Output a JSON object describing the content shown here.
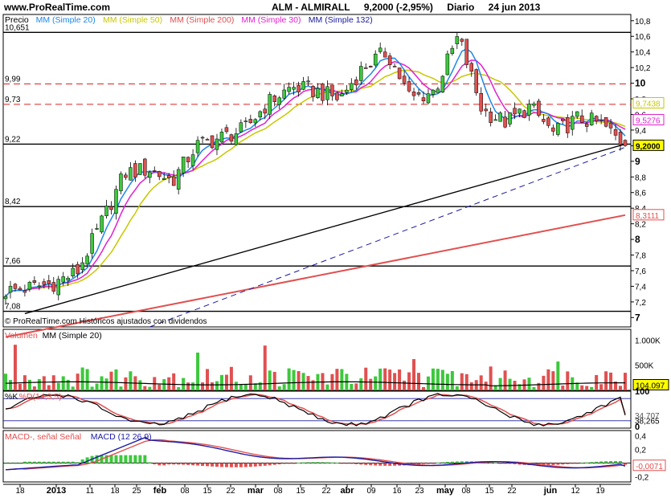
{
  "header": {
    "site": "www.ProRealTime.com",
    "ticker": "ALM - ALMIRALL",
    "quote": "9,2000 (-2,95%)",
    "period": "Diario",
    "date": "24 jun 2013"
  },
  "price_panel": {
    "legend": [
      {
        "text": "Precio",
        "color": "#000000"
      },
      {
        "text": "MM (Simple 20)",
        "color": "#1e88e5"
      },
      {
        "text": "MM (Simple 50)",
        "color": "#c8c800"
      },
      {
        "text": "MM (Simple 200)",
        "color": "#e05050"
      },
      {
        "text": "MM (Simple 30)",
        "color": "#e020d0"
      },
      {
        "text": "MM (Simple 132)",
        "color": "#1a1aa0"
      }
    ],
    "level_labels": [
      "10,651",
      "9,99",
      "9,73",
      "9,22",
      "8,42",
      "7,66",
      "7,08"
    ],
    "copyright": "© ProRealTime.com  Históricos ajustados con dividendos",
    "axis_ticks": [
      "10,8",
      "10,6",
      "10,4",
      "10,2",
      "10",
      "9,8",
      "9,6",
      "9,4",
      "9,2",
      "9",
      "8,8",
      "8,6",
      "8,4",
      "8,2",
      "8",
      "7,8",
      "7,6",
      "7,4",
      "7,2",
      "7"
    ],
    "value_tags": [
      {
        "text": "9,7438",
        "color": "#c8c800"
      },
      {
        "text": "9,5276",
        "color": "#e020d0"
      },
      {
        "text": "9,2000",
        "color": "#000000"
      },
      {
        "text": "8,3111",
        "color": "#e05050"
      }
    ]
  },
  "volume_panel": {
    "legend": [
      {
        "text": "Volumen",
        "color": "#e05050"
      },
      {
        "text": "MM (Simple 20)",
        "color": "#000000"
      }
    ],
    "axis_ticks": [
      "1.000K",
      "500K"
    ],
    "value_tag": "104.097"
  },
  "stoch_panel": {
    "legend": [
      {
        "text": "%K",
        "color": "#000000"
      },
      {
        "text": "%D(14,3,5)",
        "color": "#e05050"
      }
    ],
    "axis_ticks": [
      "100",
      "0"
    ],
    "value_tags": [
      "34,707",
      "38,265"
    ]
  },
  "macd_panel": {
    "legend": [
      {
        "text": "MACD-, señal Señal",
        "color": "#e05050"
      },
      {
        "text": "MACD (12 26 9)",
        "color": "#1a1aa0"
      }
    ],
    "axis_ticks": [
      "0,4",
      "0,2",
      "0",
      "-0,2"
    ],
    "value_tag": "-0,0071"
  },
  "x_axis": [
    "18",
    "2013",
    "11",
    "18",
    "25",
    "feb",
    "08",
    "15",
    "22",
    "mar",
    "08",
    "15",
    "22",
    "abr",
    "09",
    "16",
    "23",
    "may",
    "08",
    "15",
    "22",
    "jun",
    "12",
    "19"
  ],
  "chart_data": {
    "type": "candlestick",
    "title": "ALM - ALMIRALL  9,2000 (-2,95%)  Diario  24 jun 2013",
    "ylim": [
      6.88,
      10.88
    ],
    "y_ticks": [
      10.8,
      10.6,
      10.4,
      10.2,
      10,
      9.8,
      9.6,
      9.4,
      9.2,
      9,
      8.8,
      8.6,
      8.4,
      8.2,
      8,
      7.8,
      7.6,
      7.4,
      7.2,
      7
    ],
    "horizontal_levels": {
      "solid": [
        10.651,
        9.22,
        8.42,
        7.66,
        7.08
      ],
      "dashed": [
        9.99,
        9.73
      ]
    },
    "close_points": [
      [
        "dic 14",
        7.34
      ],
      [
        "dic 21",
        7.38
      ],
      [
        "dic 31",
        7.44
      ],
      [
        "ene 11",
        7.58
      ],
      [
        "ene 18",
        8.2
      ],
      [
        "ene 25",
        8.85
      ],
      [
        "feb 1",
        8.9
      ],
      [
        "feb 8",
        8.75
      ],
      [
        "feb 15",
        9.2
      ],
      [
        "feb 22",
        9.3
      ],
      [
        "mar 1",
        9.4
      ],
      [
        "mar 8",
        9.75
      ],
      [
        "mar 15",
        9.95
      ],
      [
        "mar 22",
        9.9
      ],
      [
        "abr 1",
        9.8
      ],
      [
        "abr 9",
        10.2
      ],
      [
        "abr 16",
        10.4
      ],
      [
        "abr 23",
        9.8
      ],
      [
        "may 1",
        9.9
      ],
      [
        "may 8",
        10.6
      ],
      [
        "may 15",
        9.65
      ],
      [
        "may 22",
        9.5
      ],
      [
        "may 29",
        9.7
      ],
      [
        "jun 5",
        9.35
      ],
      [
        "jun 12",
        9.55
      ],
      [
        "jun 19",
        9.48
      ],
      [
        "jun 24",
        9.2
      ]
    ],
    "last_values": {
      "price": 9.2,
      "sma20": 9.5276,
      "sma50": 9.7438,
      "sma200": 8.3111
    },
    "volume_avg_last": 104097,
    "stochastic_last": {
      "k": 34.707,
      "d": 38.265
    },
    "macd_last": -0.0071
  },
  "colors": {
    "sma20": "#1e88e5",
    "sma50": "#c8c800",
    "sma200": "#e05050",
    "sma30": "#e020d0",
    "sma132": "#1a1aa0",
    "up": "#3cc83c",
    "down": "#e05050"
  }
}
